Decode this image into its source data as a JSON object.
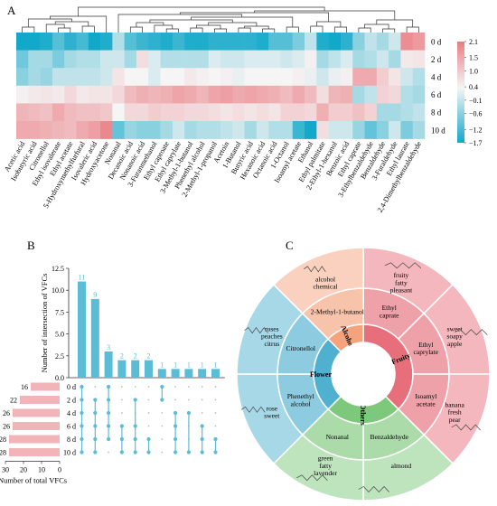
{
  "panels": {
    "a": "A",
    "b": "B",
    "c": "C"
  },
  "heatmap": {
    "rows": [
      "0 d",
      "2 d",
      "4 d",
      "6 d",
      "8 d",
      "10 d"
    ],
    "columns": [
      "Acetic acid",
      "Isobutyric acid",
      "Citronellol",
      "Ethyl isovalerate",
      "Ethyl acetate",
      "5-Hydroxymethylfurfural",
      "Isovaleric acid",
      "Hydroxyacetone",
      "Nonanal",
      "Decanoic acid",
      "Nonanoic acid",
      "3-Furanmethanol",
      "Ethyl caproate",
      "Ethyl caprylate",
      "3-Methyl-1-butanol",
      "Phenethyl alcohol",
      "2-Methyl-1-propanol",
      "Acetoin",
      "1-Butanol",
      "Butyric acid",
      "Hexanoic acid",
      "Octanoic acid",
      "1-Octanol",
      "Isoamyl acetate",
      "Ethanol",
      "Ethyl palmitate",
      "2-Ethyl-1-hexanol",
      "Benzoic acid",
      "Ethyl caprate",
      "3-Ethylbenzaldehyde",
      "Benzaldehyde",
      "3-Furaldehyde",
      "Ethyl laurate",
      "2,4-Dimethylbenzaldehyde"
    ],
    "values": [
      [
        -1.7,
        -1.7,
        -1.6,
        -1.2,
        -1.5,
        -1.3,
        -1.7,
        -1.6,
        -0.5,
        -1.2,
        -1.4,
        -1.5,
        -1.6,
        -1.4,
        -1.6,
        -1.6,
        -1.5,
        -1.5,
        -1.5,
        -1.5,
        -1.6,
        -1.2,
        -1.2,
        -0.9,
        -0.4,
        -1.6,
        -1.7,
        -1.5,
        -0.8,
        -0.4,
        -0.6,
        -0.3,
        1.8,
        1.6
      ],
      [
        -1.0,
        -0.6,
        -0.6,
        -0.9,
        -0.6,
        -0.5,
        -0.5,
        -0.3,
        -0.3,
        -0.6,
        0.4,
        -0.2,
        -0.5,
        -0.5,
        -0.5,
        -0.5,
        -0.2,
        -0.3,
        -0.3,
        -0.2,
        -0.2,
        -0.2,
        -0.3,
        -0.2,
        0.1,
        -0.6,
        -0.4,
        -0.2,
        -0.6,
        -0.5,
        -0.3,
        -0.6,
        0.2,
        0.3
      ],
      [
        -0.8,
        -0.6,
        -0.7,
        -0.4,
        -0.4,
        -0.4,
        -0.4,
        -0.3,
        0.3,
        0.0,
        0.0,
        -0.2,
        0.0,
        0.0,
        0.2,
        0.1,
        0.0,
        0.1,
        -0.1,
        0.0,
        0.0,
        0.0,
        0.0,
        0.1,
        -0.1,
        -0.3,
        -0.1,
        0.1,
        1.3,
        1.3,
        0.7,
        0.3,
        -0.3,
        -0.5
      ],
      [
        0.1,
        0.2,
        0.3,
        0.2,
        0.5,
        0.2,
        0.3,
        0.3,
        0.5,
        1.0,
        1.2,
        1.1,
        1.2,
        1.4,
        1.3,
        1.1,
        1.4,
        1.5,
        1.3,
        1.4,
        1.3,
        1.2,
        1.0,
        1.3,
        1.0,
        0.4,
        1.1,
        1.2,
        -0.6,
        -0.4,
        0.6,
        0.5,
        -0.5,
        -0.6
      ],
      [
        1.1,
        1.0,
        0.9,
        1.3,
        1.0,
        0.9,
        0.9,
        0.8,
        0.0,
        0.5,
        0.5,
        0.7,
        0.6,
        0.6,
        0.5,
        0.5,
        0.4,
        0.3,
        0.4,
        0.3,
        0.4,
        0.3,
        0.6,
        0.6,
        0.5,
        1.2,
        0.7,
        0.7,
        0.9,
        0.6,
        -0.6,
        -0.6,
        -0.5,
        -0.4
      ],
      [
        1.3,
        1.3,
        1.2,
        1.1,
        1.0,
        1.3,
        1.5,
        1.9,
        -1.1,
        -0.7,
        -0.8,
        -0.8,
        -0.6,
        -0.3,
        -0.6,
        -0.5,
        -0.5,
        -0.4,
        -0.3,
        -0.6,
        -0.3,
        -0.5,
        -0.5,
        -1.4,
        -1.9,
        0.4,
        -0.3,
        -0.3,
        -0.7,
        -1.1,
        -0.8,
        -0.3,
        -0.9,
        -0.6
      ]
    ],
    "legend_ticks": [
      2.1,
      1.5,
      1.0,
      0.4,
      -0.1,
      -0.6,
      -1.2,
      -1.7
    ],
    "colors": {
      "low": "#12a8c9",
      "mid": "#f5f5f5",
      "high": "#ea7c83"
    }
  },
  "chart_data": [
    {
      "type": "heatmap",
      "title": "",
      "rows": [
        "0 d",
        "2 d",
        "4 d",
        "6 d",
        "8 d",
        "10 d"
      ],
      "value_range": [
        -1.7,
        2.1
      ],
      "note": "values listed under heatmap.values"
    },
    {
      "type": "bar",
      "ylabel": "Number of intersection of VFCs",
      "ylim": [
        0,
        12.5
      ],
      "ticks": [
        "12.5",
        "10.0",
        "7.5",
        "5.0",
        "2.5",
        "0.0"
      ],
      "tick_values": [
        12.5,
        10.0,
        7.5,
        5.0,
        2.5,
        0.0
      ],
      "values": [
        11,
        9,
        3,
        2,
        2,
        2,
        1,
        1,
        1,
        1,
        1
      ],
      "sets": [
        "0 d",
        "2 d",
        "4 d",
        "6 d",
        "8 d",
        "10 d"
      ],
      "set_totals": [
        16,
        22,
        26,
        26,
        28,
        28
      ],
      "set_axis_ticks": [
        "30",
        "20",
        "10",
        "0"
      ],
      "set_axis_values": [
        30,
        20,
        10,
        0
      ],
      "set_xlabel": "Number of total VFCs",
      "membership": [
        [
          0,
          1,
          2,
          3,
          4,
          5
        ],
        [
          1,
          2,
          3,
          4,
          5
        ],
        [
          0,
          1,
          2,
          3,
          4
        ],
        [
          3,
          4,
          5
        ],
        [
          1,
          3,
          4,
          5
        ],
        [
          4,
          5
        ],
        [
          0,
          1
        ],
        [
          2,
          3,
          4,
          5
        ],
        [
          2,
          5
        ],
        [
          3,
          4,
          5
        ],
        [
          4,
          5
        ]
      ],
      "bar_color": "#5bbcd6",
      "set_bar_color": "#f2b4b8"
    },
    {
      "type": "sunburst",
      "categories": [
        {
          "name": "Fruity",
          "color": "#e66f7b",
          "compounds": [
            {
              "name": "Ethyl caprate",
              "descriptor": "fruity fatty pleasant"
            },
            {
              "name": "Ethyl caprylate",
              "descriptor": "sweet soapy apple"
            },
            {
              "name": "Isoamyl acetate",
              "descriptor": "banana fresh pear"
            }
          ]
        },
        {
          "name": "Others",
          "color": "#7dc87b",
          "compounds": [
            {
              "name": "Benzaldehyde",
              "descriptor": "almond"
            },
            {
              "name": "Nonanal",
              "descriptor": "green fatty lavender"
            }
          ]
        },
        {
          "name": "Flowery",
          "color": "#4fb0d0",
          "compounds": [
            {
              "name": "Phenethyl alcohol",
              "descriptor": "rose sweet"
            },
            {
              "name": "Citronellol",
              "descriptor": "roses peaches citrus"
            }
          ]
        },
        {
          "name": "Alcohol",
          "color": "#f4a37d",
          "compounds": [
            {
              "name": "2-Methyl-1-butanol",
              "descriptor": "alcohol chemical"
            }
          ]
        }
      ]
    }
  ]
}
